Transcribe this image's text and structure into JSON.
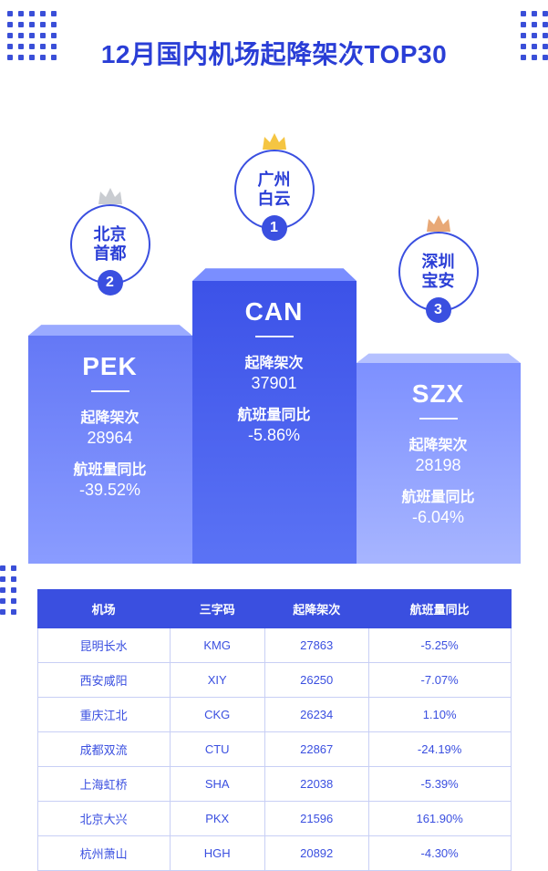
{
  "title": "12月国内机场起降架次TOP30",
  "colors": {
    "primary": "#3a4fe0",
    "title": "#2a3ed6",
    "p1_grad_top": "#3c52e8",
    "p1_grad_bot": "#5b73f5",
    "p2_grad_top": "#6478f6",
    "p2_grad_bot": "#8a9cff",
    "p3_grad_top": "#7d90ff",
    "p3_grad_bot": "#a7b5ff",
    "table_border": "#c8cff5",
    "crown_gold": "#f5c542",
    "crown_silver": "#c9ccd1",
    "crown_bronze": "#e8a876"
  },
  "labels": {
    "movements": "起降架次",
    "yoy": "航班量同比"
  },
  "podium": {
    "first": {
      "rank": "1",
      "name_l1": "广州",
      "name_l2": "白云",
      "code": "CAN",
      "movements": "37901",
      "yoy": "-5.86%",
      "crown_color": "#f5c542"
    },
    "second": {
      "rank": "2",
      "name_l1": "北京",
      "name_l2": "首都",
      "code": "PEK",
      "movements": "28964",
      "yoy": "-39.52%",
      "crown_color": "#c9ccd1"
    },
    "third": {
      "rank": "3",
      "name_l1": "深圳",
      "name_l2": "宝安",
      "code": "SZX",
      "movements": "28198",
      "yoy": "-6.04%",
      "crown_color": "#e8a876"
    }
  },
  "table": {
    "headers": [
      "机场",
      "三字码",
      "起降架次",
      "航班量同比"
    ],
    "rows": [
      [
        "昆明长水",
        "KMG",
        "27863",
        "-5.25%"
      ],
      [
        "西安咸阳",
        "XIY",
        "26250",
        "-7.07%"
      ],
      [
        "重庆江北",
        "CKG",
        "26234",
        "1.10%"
      ],
      [
        "成都双流",
        "CTU",
        "22867",
        "-24.19%"
      ],
      [
        "上海虹桥",
        "SHA",
        "22038",
        "-5.39%"
      ],
      [
        "北京大兴",
        "PKX",
        "21596",
        "161.90%"
      ],
      [
        "杭州萧山",
        "HGH",
        "20892",
        "-4.30%"
      ]
    ]
  }
}
